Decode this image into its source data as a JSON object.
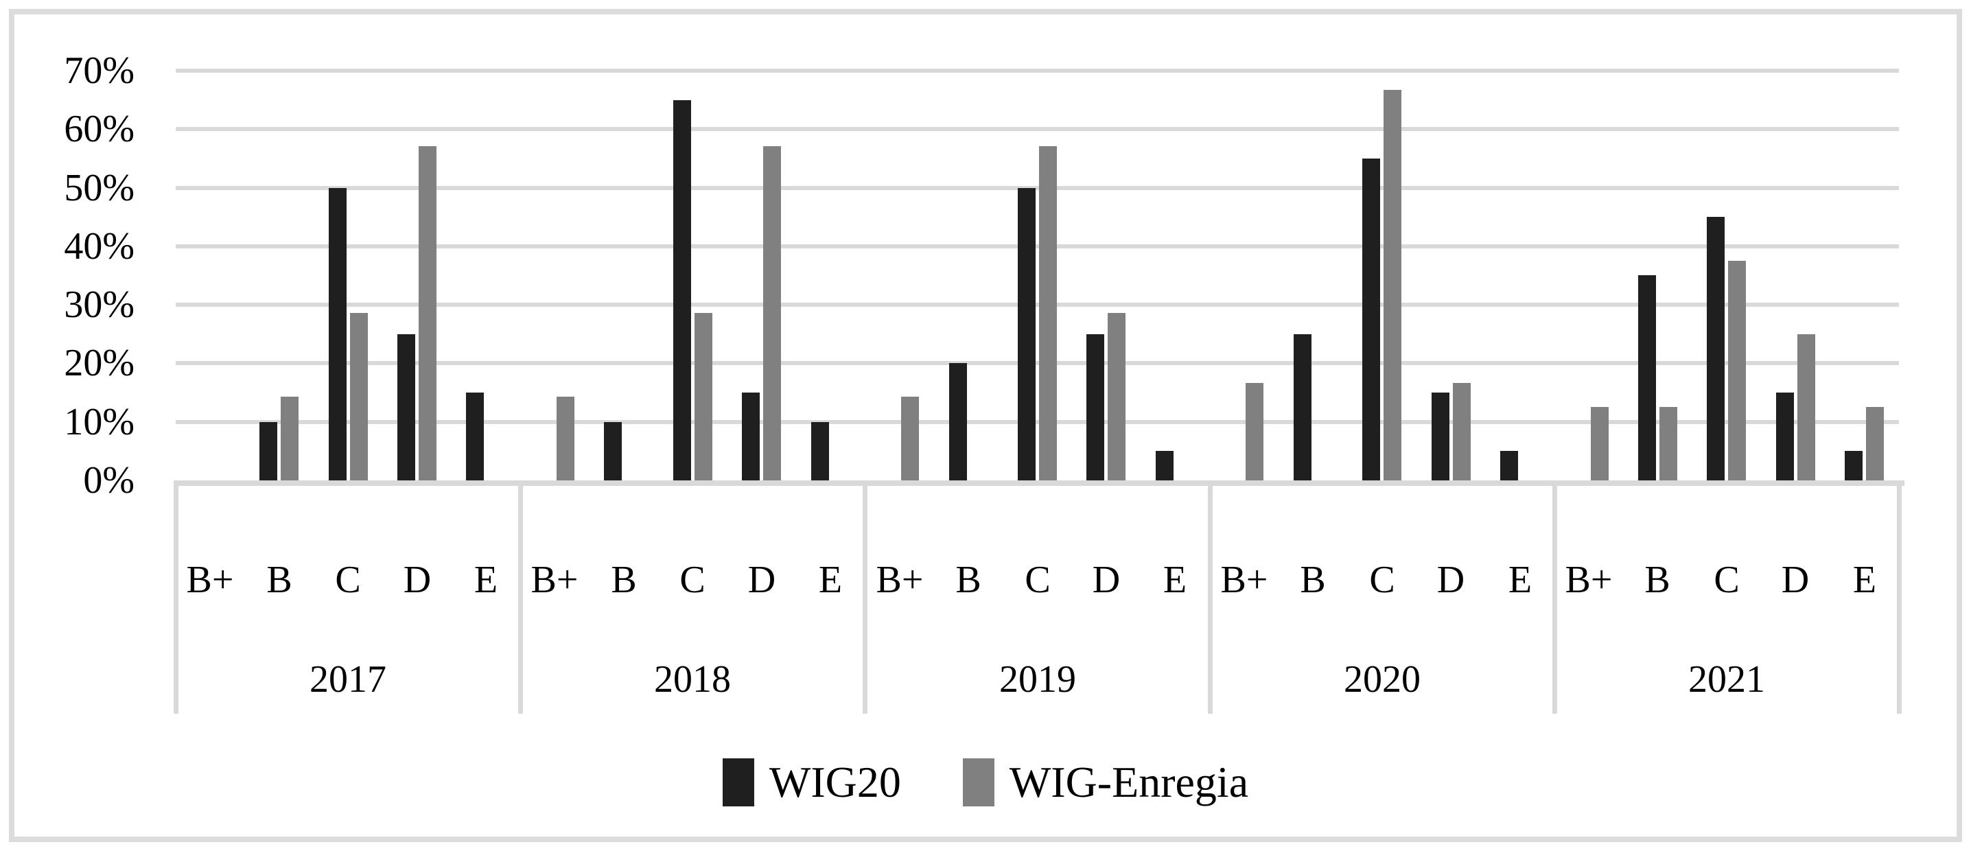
{
  "figure": {
    "background": "#ffffff",
    "frame_color": "#dcdcdc",
    "gridline_color": "#d9d9d9",
    "axis_line_color": "#d9d9d9",
    "text_color": "#000000"
  },
  "chart_data": {
    "type": "bar",
    "title": "",
    "xlabel": "",
    "ylabel": "",
    "ylim": [
      0,
      70
    ],
    "grid": true,
    "legend_position": "bottom",
    "y_ticks": [
      "0%",
      "10%",
      "20%",
      "30%",
      "40%",
      "50%",
      "60%",
      "70%"
    ],
    "groups": [
      "2017",
      "2018",
      "2019",
      "2020",
      "2021"
    ],
    "categories_per_group": [
      "B+",
      "B",
      "C",
      "D",
      "E"
    ],
    "series": [
      {
        "name": "WIG20",
        "color": "#1f1f1f",
        "values": [
          [
            null,
            10,
            50,
            25,
            15
          ],
          [
            null,
            10,
            65,
            15,
            10
          ],
          [
            null,
            20,
            50,
            25,
            5
          ],
          [
            null,
            25,
            55,
            15,
            5
          ],
          [
            null,
            35,
            45,
            15,
            5
          ]
        ]
      },
      {
        "name": "WIG-Enregia",
        "color": "#808080",
        "values": [
          [
            null,
            14.3,
            28.6,
            57.1,
            null
          ],
          [
            14.3,
            null,
            28.6,
            57.1,
            null
          ],
          [
            14.3,
            null,
            57.1,
            28.6,
            null
          ],
          [
            16.7,
            null,
            66.7,
            16.7,
            null
          ],
          [
            12.5,
            12.5,
            37.5,
            25,
            12.5
          ]
        ]
      }
    ]
  }
}
